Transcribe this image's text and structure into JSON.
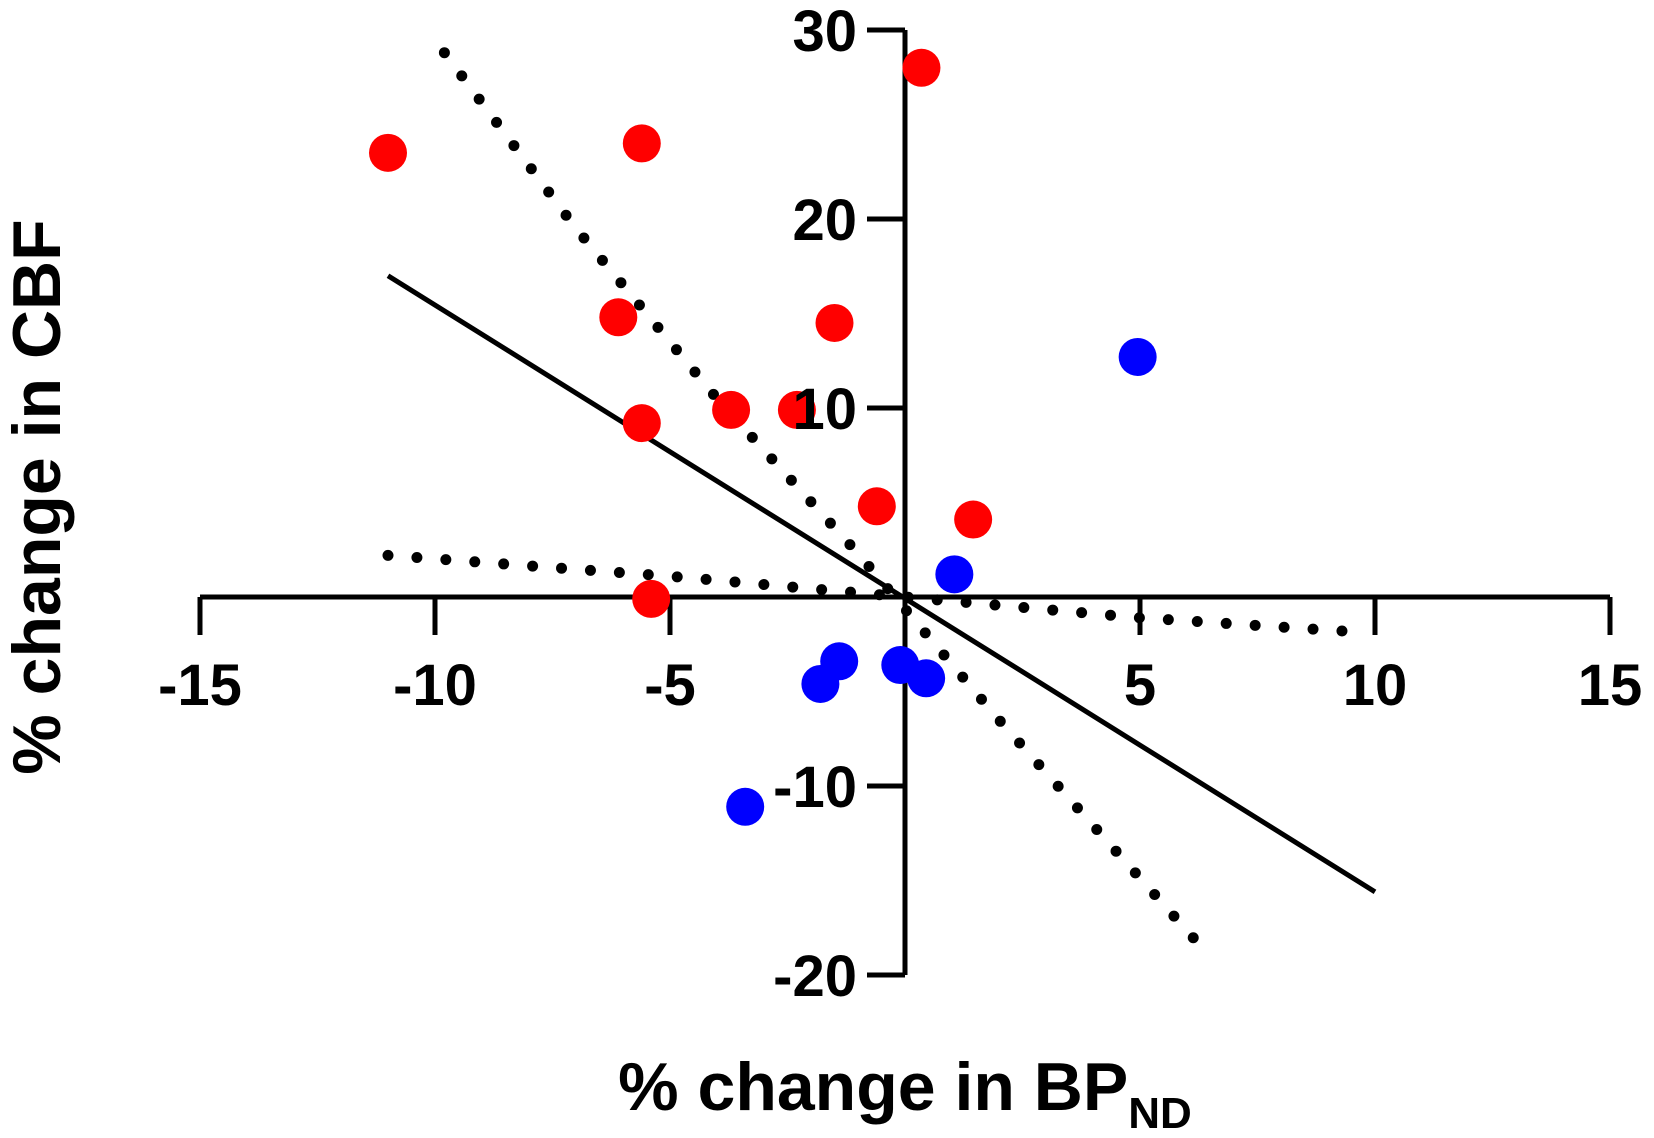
{
  "chart_data": {
    "type": "scatter",
    "xlabel": "% change in BP",
    "xlabel_subscript": "ND",
    "ylabel": "% change in CBF",
    "xlim": [
      -15,
      15
    ],
    "ylim": [
      -20,
      30
    ],
    "x_ticks": [
      "-15",
      "-10",
      "-5",
      "",
      "5",
      "10",
      "15"
    ],
    "y_ticks": [
      "30",
      "20",
      "10",
      "",
      "-10",
      "-20"
    ],
    "axes_cross_at_origin": true,
    "grid": false,
    "series": [
      {
        "color": "#ff0000",
        "points": [
          {
            "x": 0.35,
            "y": 28
          },
          {
            "x": -11,
            "y": 23.5
          },
          {
            "x": -5.6,
            "y": 24
          },
          {
            "x": -6.1,
            "y": 14.8
          },
          {
            "x": -1.5,
            "y": 14.5
          },
          {
            "x": -3.7,
            "y": 9.9
          },
          {
            "x": -2.3,
            "y": 9.9
          },
          {
            "x": -5.6,
            "y": 9.2
          },
          {
            "x": -0.6,
            "y": 4.8
          },
          {
            "x": 1.45,
            "y": 4.1
          },
          {
            "x": -5.4,
            "y": -0.1
          }
        ]
      },
      {
        "color": "#0000ff",
        "points": [
          {
            "x": 4.95,
            "y": 12.7
          },
          {
            "x": 1.05,
            "y": 1.2
          },
          {
            "x": -1.4,
            "y": -3.4
          },
          {
            "x": -1.8,
            "y": -4.6
          },
          {
            "x": -0.1,
            "y": -3.6
          },
          {
            "x": 0.45,
            "y": -4.3
          },
          {
            "x": -3.4,
            "y": -11.1
          }
        ]
      }
    ],
    "regression_line": {
      "x": [
        -11,
        10
      ],
      "y": [
        17,
        -15.6
      ],
      "style": "solid"
    },
    "confidence_bands": [
      {
        "x": [
          -9.8,
          -7,
          -4,
          -1,
          2,
          6.3
        ],
        "y": [
          28.8,
          19.5,
          10.5,
          2.3,
          -6.5,
          -18.5
        ],
        "style": "dotted"
      },
      {
        "x": [
          -11,
          -5,
          0,
          5,
          9.3
        ],
        "y": [
          2.2,
          1.1,
          0,
          -1.1,
          -1.8
        ],
        "style": "dotted"
      }
    ]
  }
}
